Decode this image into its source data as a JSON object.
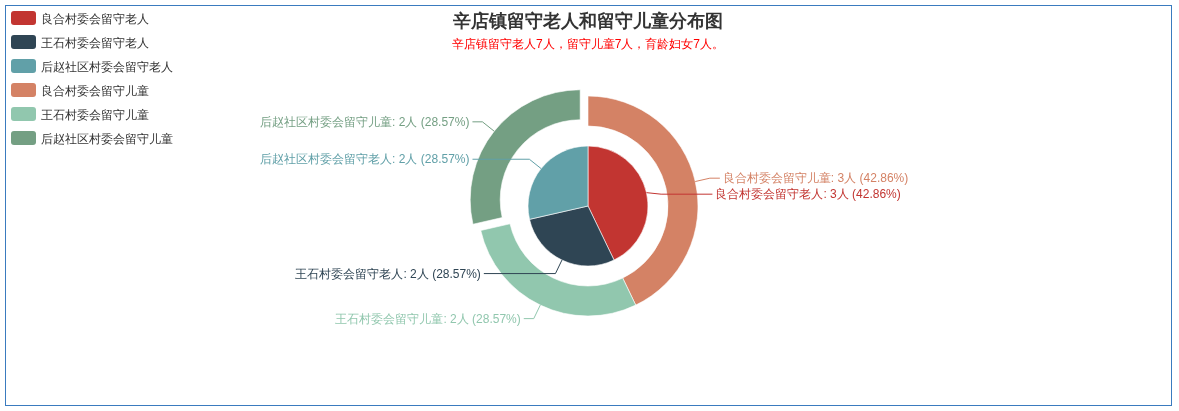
{
  "chart_data": {
    "type": "donut",
    "title": "辛店镇留守老人和留守儿童分布图",
    "subtitle": "辛店镇留守老人7人，留守儿童7人，育龄妇女7人。",
    "categories": [
      "良合村委会留守老人",
      "王石村委会留守老人",
      "后赵社区村委会留守老人",
      "良合村委会留守儿童",
      "王石村委会留守儿童",
      "后赵社区村委会留守儿童"
    ],
    "colors": [
      "#c23531",
      "#2f4554",
      "#61a0a8",
      "#d48265",
      "#91c7ae",
      "#749f83"
    ],
    "legend": "top left",
    "series": [
      {
        "values": [
          null,
          null,
          null,
          3,
          2,
          2
        ],
        "value_labels": [
          null,
          null,
          null,
          "良合村委会留守儿童: 3人 (42.86%)",
          "王石村委会留守儿童: 2人 (28.57%)",
          "后赵社区村委会留守儿童: 2人 (28.57%)"
        ]
      },
      {
        "type": "pie",
        "values": [
          3,
          2,
          2,
          null,
          null,
          null
        ],
        "value_labels": [
          "良合村委会留守老人: 3人 (42.86%)",
          "王石村委会留守老人: 2人 (28.57%)",
          "后赵社区村委会留守老人: 2人 (28.57%)",
          null,
          null,
          null
        ]
      }
    ]
  }
}
